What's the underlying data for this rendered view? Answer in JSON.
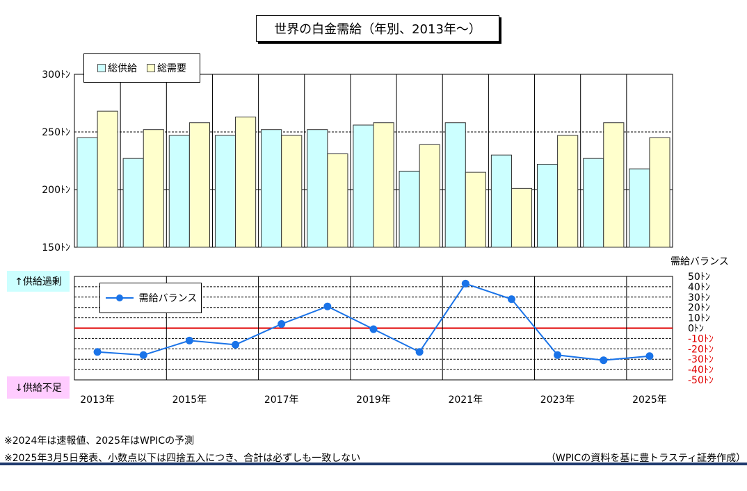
{
  "title": "世界の白金需給（年別、2013年～）",
  "side_labels": {
    "surplus": "↑供給過剰",
    "deficit": "↓供給不足"
  },
  "balance_axis_title": "需給バランス",
  "notes": [
    "※2024年は速報値、2025年はWPICの予測",
    "※2025年3月5日発表、小数点以下は四捨五入につき、合計は必ずしも一致しない"
  ],
  "source": "（WPICの資料を基に豊トラスティ証券作成）",
  "colors": {
    "supply": "#ccffff",
    "demand": "#ffffcc",
    "balance": "#1a73e8",
    "zero_line": "#e00000",
    "negative_ticks": "#e00000"
  },
  "chart_data": [
    {
      "type": "bar",
      "categories": [
        "2013年",
        "2014年",
        "2015年",
        "2016年",
        "2017年",
        "2018年",
        "2019年",
        "2020年",
        "2021年",
        "2022年",
        "2023年",
        "2024年",
        "2025年"
      ],
      "category_labels": [
        "2013年",
        "2015年",
        "2017年",
        "2019年",
        "2021年",
        "2023年",
        "2025年"
      ],
      "series": [
        {
          "name": "総供給",
          "values": [
            245,
            227,
            247,
            247,
            252,
            252,
            256,
            216,
            258,
            230,
            222,
            227,
            218
          ]
        },
        {
          "name": "総需要",
          "values": [
            268,
            252,
            258,
            263,
            247,
            231,
            258,
            239,
            215,
            201,
            247,
            258,
            245
          ]
        }
      ],
      "ylim": [
        150,
        300
      ],
      "yticks": [
        150,
        200,
        250,
        300
      ],
      "ytick_labels": [
        "150ﾄﾝ",
        "200ﾄﾝ",
        "250ﾄﾝ",
        "300ﾄﾝ"
      ],
      "legend": "top-left"
    },
    {
      "type": "line",
      "categories": [
        "2013年",
        "2014年",
        "2015年",
        "2016年",
        "2017年",
        "2018年",
        "2019年",
        "2020年",
        "2021年",
        "2022年",
        "2023年",
        "2024年",
        "2025年"
      ],
      "series": [
        {
          "name": "需給バランス",
          "values": [
            -23,
            -26,
            -12,
            -16,
            4,
            21,
            -1,
            -23,
            43,
            28,
            -26,
            -31,
            -27
          ]
        }
      ],
      "ylim": [
        -50,
        50
      ],
      "yticks": [
        50,
        40,
        30,
        20,
        10,
        0,
        -10,
        -20,
        -30,
        -40,
        -50
      ],
      "ytick_labels": [
        "50ﾄﾝ",
        "40ﾄﾝ",
        "30ﾄﾝ",
        "20ﾄﾝ",
        "10ﾄﾝ",
        "0ﾄﾝ",
        "-10ﾄﾝ",
        "-20ﾄﾝ",
        "-30ﾄﾝ",
        "-40ﾄﾝ",
        "-50ﾄﾝ"
      ],
      "legend": "top-left"
    }
  ]
}
